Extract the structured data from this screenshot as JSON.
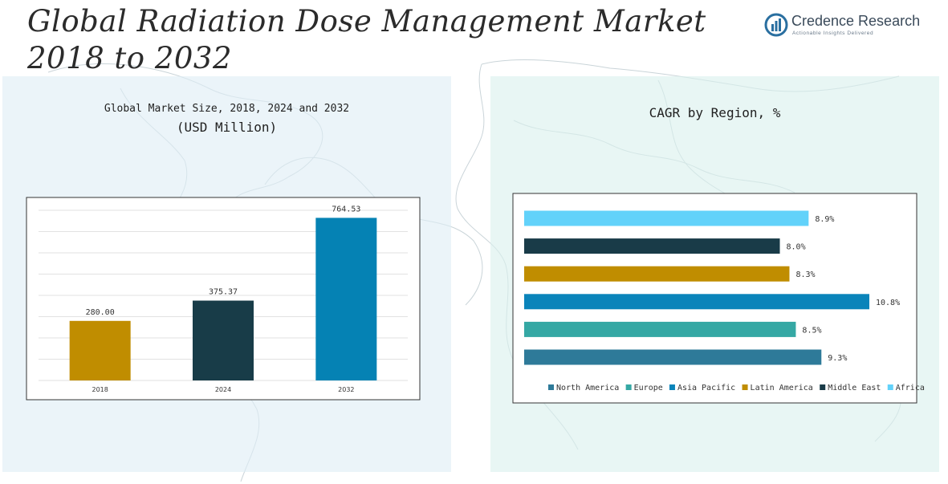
{
  "title": "Global Radiation Dose Management Market 2018 to 2032",
  "brand": {
    "name": "Credence Research",
    "tagline": "Actionable Insights Delivered",
    "color": "#2a6fa0"
  },
  "left_panel": {
    "title_line1": "Global Market Size, 2018, 2024 and 2032",
    "title_line2": "(USD Million)"
  },
  "right_panel": {
    "title": "CAGR by Region, %"
  },
  "chart_data": [
    {
      "type": "bar",
      "title": "Global Market Size, 2018, 2024 and 2032 (USD Million)",
      "categories": [
        "2018",
        "2024",
        "2032"
      ],
      "values": [
        280.0,
        375.37,
        764.53
      ],
      "value_labels": [
        "280.00",
        "375.37",
        "764.53"
      ],
      "colors": [
        "#c08d00",
        "#183c48",
        "#0582b4"
      ],
      "ylim": [
        0,
        800
      ],
      "grid": true
    },
    {
      "type": "bar",
      "orientation": "horizontal",
      "title": "CAGR by Region, %",
      "categories": [
        "North America",
        "Europe",
        "Asia Pacific",
        "Latin America",
        "Middle East",
        "Africa"
      ],
      "values": [
        9.3,
        8.5,
        10.8,
        8.3,
        8.0,
        8.9
      ],
      "value_labels": [
        "9.3%",
        "8.5%",
        "10.8%",
        "8.3%",
        "8.0%",
        "8.9%"
      ],
      "colors": [
        "#2e7a99",
        "#35a8a4",
        "#0a84ba",
        "#c08d00",
        "#193b48",
        "#62d2fa"
      ],
      "xlim": [
        0,
        11.5
      ],
      "legend": "bottom"
    }
  ]
}
